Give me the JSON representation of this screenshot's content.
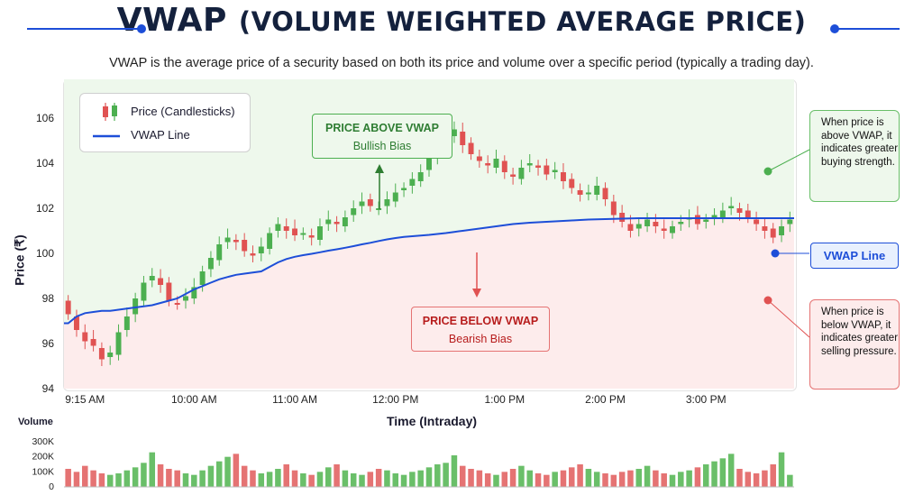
{
  "header": {
    "title_main": "VWAP",
    "title_sub": "(VOLUME WEIGHTED AVERAGE PRICE)",
    "subtitle": "VWAP is the average price of a security based on both its price and volume over a specific period (typically a trading day).",
    "accent_color": "#1d4ed8"
  },
  "legend": {
    "price_label": "Price (Candlesticks)",
    "vwap_label": "VWAP Line"
  },
  "annotations": {
    "above_title": "PRICE ABOVE VWAP",
    "above_sub": "Bullish Bias",
    "below_title": "PRICE BELOW VWAP",
    "below_sub": "Bearish Bias",
    "note_above": "When price is above VWAP, it indicates greater buying strength.",
    "note_below": "When price is below VWAP, it indicates greater selling pressure.",
    "vwap_tag": "VWAP Line"
  },
  "colors": {
    "bull": "#4caf50",
    "bear": "#e05252",
    "vwap": "#1d4ed8",
    "above_zone": "#eef8ec",
    "below_zone": "#fdecec"
  },
  "chart_data": {
    "type": "candlestick",
    "ylabel": "Price (₹)",
    "xlabel": "Time (Intraday)",
    "ylim": [
      94,
      107
    ],
    "y_ticks": [
      94,
      96,
      98,
      100,
      102,
      104,
      106
    ],
    "x_ticks": [
      {
        "label": "9:15 AM",
        "bar": 2
      },
      {
        "label": "10:00 AM",
        "bar": 15
      },
      {
        "label": "11:00 AM",
        "bar": 27
      },
      {
        "label": "12:00 PM",
        "bar": 39
      },
      {
        "label": "1:00 PM",
        "bar": 52
      },
      {
        "label": "2:00 PM",
        "bar": 64
      },
      {
        "label": "3:00 PM",
        "bar": 76
      }
    ],
    "close": [
      97.3,
      96.6,
      96.1,
      95.9,
      95.3,
      95.6,
      96.5,
      97.2,
      98.0,
      98.7,
      99.0,
      98.6,
      97.9,
      97.8,
      98.1,
      98.5,
      99.2,
      99.8,
      100.4,
      100.7,
      100.5,
      100.1,
      99.9,
      100.3,
      100.9,
      101.3,
      101.0,
      100.8,
      100.9,
      100.7,
      101.2,
      101.5,
      101.3,
      101.6,
      102.0,
      102.3,
      102.1,
      102.0,
      102.4,
      102.7,
      102.9,
      103.3,
      103.6,
      104.2,
      104.6,
      105.1,
      105.5,
      104.8,
      104.4,
      104.1,
      103.9,
      104.2,
      103.6,
      103.4,
      103.8,
      104.0,
      103.8,
      103.5,
      103.7,
      103.2,
      102.9,
      102.6,
      102.7,
      103.0,
      102.4,
      101.7,
      101.4,
      101.0,
      101.3,
      101.5,
      101.2,
      101.0,
      101.2,
      101.4,
      101.6,
      101.3,
      101.5,
      101.7,
      101.9,
      102.1,
      101.8,
      101.6,
      101.3,
      101.0,
      100.7,
      101.2,
      101.5
    ],
    "vwap": [
      96.9,
      97.2,
      97.35,
      97.4,
      97.45,
      97.45,
      97.5,
      97.55,
      97.6,
      97.65,
      97.7,
      97.8,
      97.9,
      98.0,
      98.2,
      98.4,
      98.55,
      98.7,
      98.85,
      98.95,
      99.05,
      99.1,
      99.15,
      99.2,
      99.4,
      99.6,
      99.75,
      99.85,
      99.92,
      99.98,
      100.05,
      100.12,
      100.18,
      100.25,
      100.32,
      100.4,
      100.47,
      100.55,
      100.62,
      100.68,
      100.73,
      100.76,
      100.79,
      100.82,
      100.86,
      100.9,
      100.95,
      101.0,
      101.05,
      101.1,
      101.15,
      101.2,
      101.25,
      101.3,
      101.33,
      101.36,
      101.38,
      101.4,
      101.42,
      101.44,
      101.46,
      101.48,
      101.5,
      101.51,
      101.52,
      101.53,
      101.54,
      101.55,
      101.56,
      101.56,
      101.56,
      101.56,
      101.56,
      101.56,
      101.56,
      101.56,
      101.56,
      101.56,
      101.56,
      101.56,
      101.56,
      101.56,
      101.56,
      101.56,
      101.56,
      101.56,
      101.56
    ],
    "volume_label": "Volume",
    "volume_ticks": [
      "0",
      "100K",
      "200K",
      "300K"
    ],
    "volume": [
      120,
      100,
      140,
      110,
      90,
      80,
      90,
      110,
      130,
      160,
      230,
      150,
      120,
      110,
      90,
      80,
      110,
      140,
      170,
      200,
      220,
      140,
      110,
      90,
      100,
      120,
      150,
      110,
      90,
      80,
      100,
      130,
      150,
      110,
      90,
      80,
      100,
      120,
      110,
      90,
      80,
      100,
      110,
      130,
      150,
      160,
      210,
      140,
      120,
      110,
      90,
      80,
      100,
      120,
      140,
      110,
      90,
      80,
      100,
      110,
      130,
      150,
      120,
      100,
      90,
      80,
      100,
      110,
      120,
      140,
      110,
      90,
      80,
      100,
      110,
      130,
      150,
      170,
      190,
      220,
      120,
      100,
      90,
      110,
      150,
      230,
      80
    ]
  }
}
